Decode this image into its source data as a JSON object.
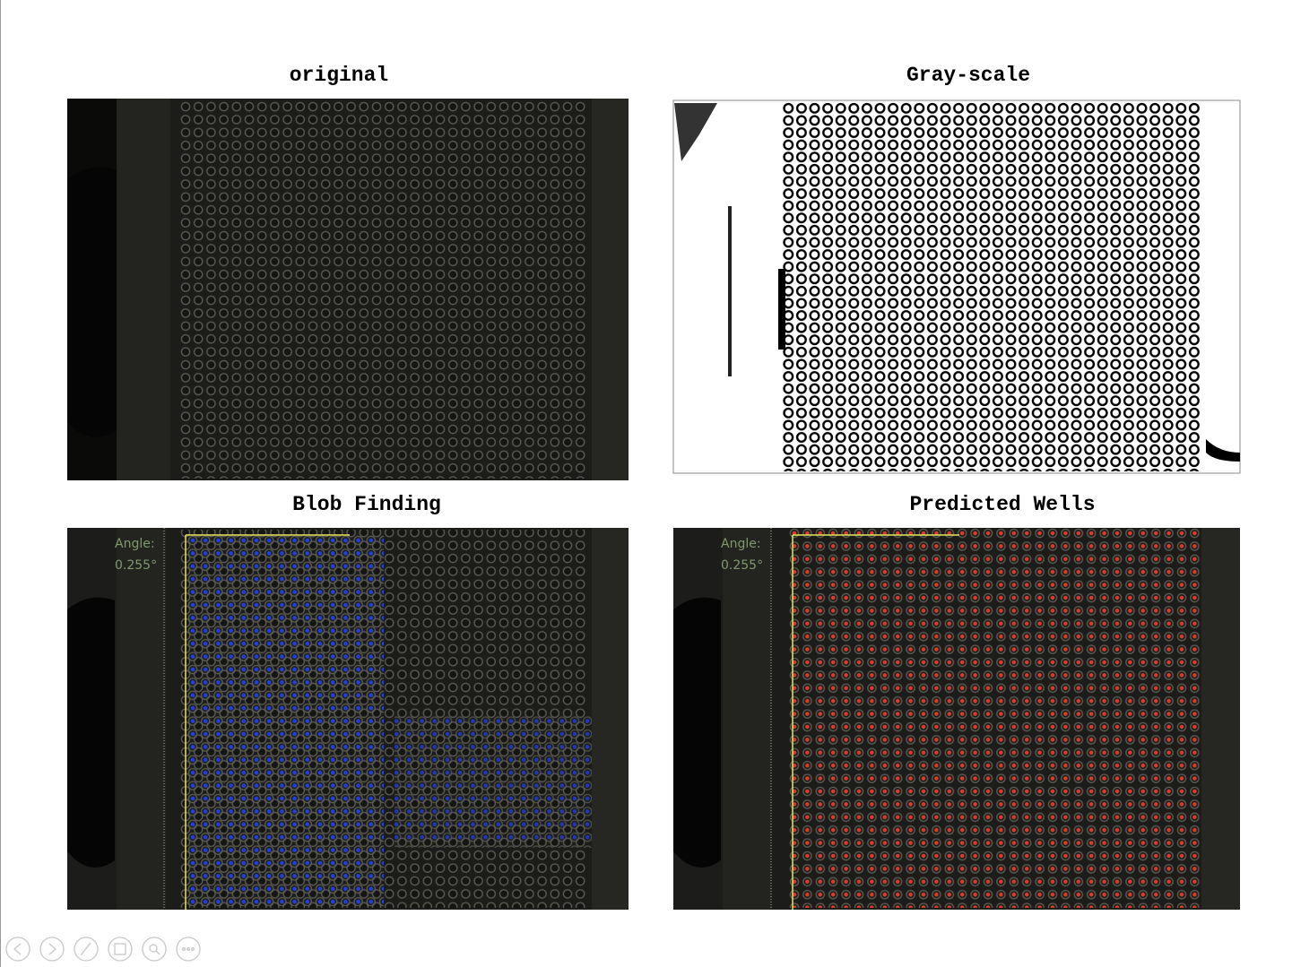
{
  "panels": [
    {
      "title": "original"
    },
    {
      "title": "Gray-scale"
    },
    {
      "title": "Blob Finding",
      "angle_label": "Angle:",
      "angle_value": "0.255°"
    },
    {
      "title": "Predicted Wells",
      "angle_label": "Angle:",
      "angle_value": "0.255°"
    }
  ]
}
